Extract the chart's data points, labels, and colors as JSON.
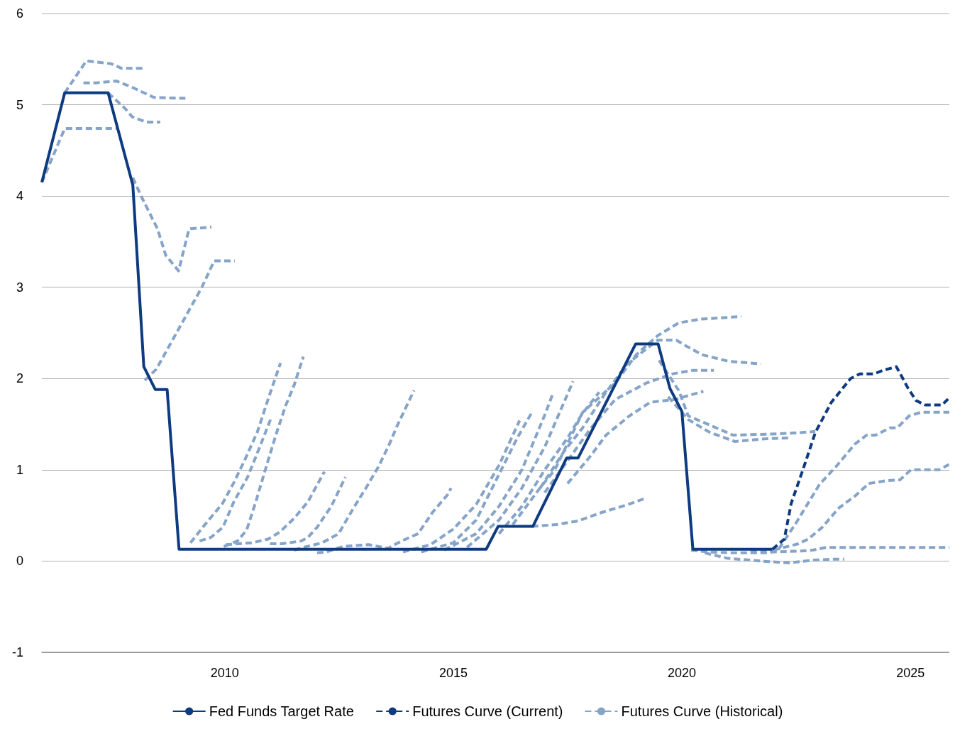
{
  "chart_data": {
    "type": "line",
    "xlim": [
      2006,
      2025.85
    ],
    "xticks": [
      2010,
      2015,
      2020,
      2025
    ],
    "ylim": [
      -1,
      6
    ],
    "yticks": [
      -1,
      0,
      1,
      2,
      3,
      4,
      5,
      6
    ],
    "grid": "y",
    "legend": "bottom",
    "series": [
      {
        "name": "Fed Funds Target Rate",
        "color": "#0e3b80",
        "line_style": "solid",
        "x": [
          2006.0,
          2006.5,
          2007.45,
          2007.99,
          2008.23,
          2008.48,
          2008.74,
          2009.0,
          2015.72,
          2015.98,
          2016.74,
          2017.48,
          2017.73,
          2018.99,
          2019.48,
          2019.74,
          2020.0,
          2020.24,
          2021.98
        ],
        "values": [
          4.15,
          5.13,
          5.13,
          4.12,
          2.13,
          1.88,
          1.88,
          0.13,
          0.13,
          0.38,
          0.38,
          1.13,
          1.13,
          2.38,
          2.38,
          1.89,
          1.64,
          0.13,
          0.13
        ]
      },
      {
        "name": "Futures Curve (Current)",
        "color": "#0e3b80",
        "line_style": "dashed",
        "x": [
          2021.98,
          2022.24,
          2022.39,
          2022.66,
          2022.92,
          2023.27,
          2023.69,
          2023.89,
          2024.2,
          2024.4,
          2024.69,
          2024.78,
          2024.94,
          2025.12,
          2025.32,
          2025.69,
          2025.83
        ],
        "values": [
          0.13,
          0.24,
          0.63,
          1.02,
          1.41,
          1.74,
          2.0,
          2.05,
          2.05,
          2.09,
          2.13,
          2.05,
          1.9,
          1.76,
          1.71,
          1.71,
          1.78
        ]
      },
      {
        "name": "Futures Curve (Historical)",
        "color": "#86a4c8",
        "line_style": "dashed",
        "x": [
          2006.0,
          2006.5,
          2007.63
        ],
        "values": [
          4.15,
          4.74,
          4.74
        ]
      },
      {
        "color": "#86a4c8",
        "line_style": "dashed",
        "x": [
          2006.5,
          2006.97,
          2007.51,
          2007.74,
          2008.22
        ],
        "values": [
          5.13,
          5.48,
          5.45,
          5.4,
          5.4
        ]
      },
      {
        "color": "#86a4c8",
        "line_style": "dashed",
        "x": [
          2006.91,
          2007.2,
          2007.63,
          2007.94,
          2008.45,
          2009.14
        ],
        "values": [
          5.24,
          5.24,
          5.26,
          5.2,
          5.08,
          5.07
        ]
      },
      {
        "color": "#86a4c8",
        "line_style": "dashed",
        "x": [
          2007.45,
          2007.82,
          2007.97,
          2008.28,
          2008.59
        ],
        "values": [
          5.13,
          4.96,
          4.87,
          4.81,
          4.81
        ]
      },
      {
        "color": "#86a4c8",
        "line_style": "dashed",
        "x": [
          2007.99,
          2008.17,
          2008.53,
          2008.71,
          2008.99,
          2009.22,
          2009.71
        ],
        "values": [
          4.2,
          4.0,
          3.64,
          3.35,
          3.18,
          3.64,
          3.66
        ]
      },
      {
        "color": "#86a4c8",
        "line_style": "dashed",
        "x": [
          2008.25,
          2008.5,
          2009.0,
          2009.5,
          2009.77,
          2010.22
        ],
        "values": [
          1.98,
          2.1,
          2.55,
          3.0,
          3.29,
          3.29
        ]
      },
      {
        "color": "#86a4c8",
        "line_style": "dashed",
        "x": [
          2009.25,
          2009.6,
          2009.95,
          2010.2,
          2010.45,
          2010.71,
          2011.0,
          2011.22
        ],
        "values": [
          0.2,
          0.42,
          0.63,
          0.86,
          1.12,
          1.41,
          1.85,
          2.17
        ]
      },
      {
        "color": "#86a4c8",
        "line_style": "dashed",
        "x": [
          2009.45,
          2009.7,
          2009.96,
          2010.2,
          2010.5,
          2010.75,
          2011.0
        ],
        "values": [
          0.22,
          0.26,
          0.37,
          0.65,
          0.92,
          1.23,
          1.55
        ]
      },
      {
        "color": "#86a4c8",
        "line_style": "dashed",
        "x": [
          2009.98,
          2010.28,
          2010.48,
          2010.68,
          2010.84,
          2010.99,
          2011.15,
          2011.33,
          2011.52,
          2011.72
        ],
        "values": [
          0.16,
          0.22,
          0.34,
          0.65,
          0.92,
          1.17,
          1.43,
          1.7,
          1.93,
          2.24
        ]
      },
      {
        "color": "#86a4c8",
        "line_style": "dashed",
        "x": [
          2010.02,
          2010.59,
          2010.95,
          2011.21,
          2011.52,
          2011.82,
          2012.18
        ],
        "values": [
          0.18,
          0.2,
          0.24,
          0.32,
          0.47,
          0.65,
          0.98
        ]
      },
      {
        "color": "#86a4c8",
        "line_style": "dashed",
        "x": [
          2010.99,
          2011.25,
          2011.67,
          2011.82,
          2012.02,
          2012.33,
          2012.64
        ],
        "values": [
          0.19,
          0.19,
          0.22,
          0.26,
          0.37,
          0.6,
          0.92
        ]
      },
      {
        "color": "#86a4c8",
        "line_style": "dashed",
        "x": [
          2011.52,
          2011.72,
          2012.13,
          2012.49,
          2012.84,
          2013.1,
          2013.37,
          2013.6,
          2013.77,
          2014.14
        ],
        "values": [
          0.12,
          0.15,
          0.2,
          0.3,
          0.6,
          0.81,
          1.04,
          1.28,
          1.48,
          1.87
        ]
      },
      {
        "color": "#86a4c8",
        "line_style": "dashed",
        "x": [
          2012.02,
          2012.22,
          2012.59,
          2013.15,
          2013.57,
          2013.87,
          2014.23,
          2014.54,
          2014.88,
          2014.95
        ],
        "values": [
          0.09,
          0.1,
          0.16,
          0.18,
          0.14,
          0.22,
          0.3,
          0.53,
          0.73,
          0.8
        ]
      },
      {
        "color": "#86a4c8",
        "line_style": "dashed",
        "x": [
          2013.9,
          2014.5,
          2015.0,
          2015.5,
          2016.0,
          2016.45
        ],
        "values": [
          0.1,
          0.18,
          0.35,
          0.62,
          1.05,
          1.54
        ]
      },
      {
        "color": "#86a4c8",
        "line_style": "dashed",
        "x": [
          2014.3,
          2015.0,
          2015.5,
          2016.0,
          2016.4,
          2016.72
        ],
        "values": [
          0.1,
          0.2,
          0.45,
          0.95,
          1.35,
          1.63
        ]
      },
      {
        "color": "#86a4c8",
        "line_style": "dashed",
        "x": [
          2014.8,
          2015.5,
          2016.0,
          2016.5,
          2017.0,
          2017.19
        ],
        "values": [
          0.12,
          0.3,
          0.6,
          1.0,
          1.6,
          1.85
        ]
      },
      {
        "color": "#86a4c8",
        "line_style": "dashed",
        "x": [
          2015.3,
          2016.0,
          2016.5,
          2017.0,
          2017.62
        ],
        "values": [
          0.15,
          0.45,
          0.8,
          1.25,
          1.97
        ]
      },
      {
        "color": "#86a4c8",
        "line_style": "dashed",
        "x": [
          2016.0,
          2016.5,
          2017.0,
          2017.5,
          2017.8,
          2018.19
        ],
        "values": [
          0.3,
          0.6,
          1.0,
          1.35,
          1.6,
          1.85
        ]
      },
      {
        "color": "#86a4c8",
        "line_style": "dashed",
        "x": [
          2016.3,
          2016.91,
          2017.22,
          2017.83,
          2018.54,
          2019.0,
          2019.47,
          2019.93,
          2020.39,
          2021.3
        ],
        "values": [
          0.4,
          0.81,
          1.0,
          1.63,
          1.95,
          2.26,
          2.47,
          2.61,
          2.65,
          2.68
        ]
      },
      {
        "color": "#86a4c8",
        "line_style": "dashed",
        "x": [
          2016.9,
          2017.42,
          2017.83,
          2018.3,
          2018.8,
          2019.47,
          2019.88,
          2020.08,
          2020.45,
          2021.01,
          2021.73
        ],
        "values": [
          0.8,
          1.2,
          1.46,
          1.82,
          2.16,
          2.42,
          2.42,
          2.36,
          2.26,
          2.19,
          2.16
        ]
      },
      {
        "color": "#86a4c8",
        "line_style": "dashed",
        "x": [
          2017.0,
          2017.5,
          2018.0,
          2018.54,
          2019.22,
          2019.78,
          2020.24,
          2020.7
        ],
        "values": [
          0.75,
          1.1,
          1.45,
          1.77,
          1.95,
          2.05,
          2.09,
          2.09
        ]
      },
      {
        "color": "#86a4c8",
        "line_style": "dashed",
        "x": [
          2017.5,
          2018.0,
          2018.34,
          2018.85,
          2019.31,
          2019.84,
          2020.47
        ],
        "values": [
          0.85,
          1.15,
          1.38,
          1.59,
          1.74,
          1.77,
          1.86
        ]
      },
      {
        "color": "#86a4c8",
        "line_style": "dashed",
        "x": [
          2016.72,
          2017.26,
          2017.73,
          2018.23,
          2018.76,
          2019.22
        ],
        "values": [
          0.38,
          0.4,
          0.44,
          0.53,
          0.61,
          0.69
        ]
      },
      {
        "color": "#86a4c8",
        "line_style": "dashed",
        "x": [
          2019.5,
          2019.93,
          2020.14,
          2020.61,
          2021.12,
          2021.84,
          2022.35,
          2022.92
        ],
        "values": [
          2.2,
          1.87,
          1.59,
          1.49,
          1.38,
          1.39,
          1.4,
          1.42
        ]
      },
      {
        "color": "#86a4c8",
        "line_style": "dashed",
        "x": [
          2019.7,
          2020.14,
          2020.61,
          2021.16,
          2021.81,
          2022.35
        ],
        "values": [
          1.8,
          1.55,
          1.41,
          1.31,
          1.34,
          1.35
        ]
      },
      {
        "color": "#86a4c8",
        "line_style": "dashed",
        "x": [
          2020.2,
          2020.6,
          2021.1,
          2021.81,
          2022.09,
          2022.5,
          2023.01,
          2023.38,
          2023.78,
          2024.04,
          2024.24,
          2024.55,
          2024.71,
          2024.97,
          2025.23,
          2025.69,
          2025.85
        ],
        "values": [
          0.12,
          0.1,
          0.09,
          0.09,
          0.11,
          0.42,
          0.84,
          1.04,
          1.28,
          1.38,
          1.38,
          1.46,
          1.46,
          1.59,
          1.63,
          1.63,
          1.63
        ]
      },
      {
        "color": "#86a4c8",
        "line_style": "dashed",
        "x": [
          2022.0,
          2022.55,
          2022.76,
          2023.07,
          2023.43,
          2023.78,
          2024.09,
          2024.46,
          2024.77,
          2025.01,
          2025.63,
          2025.85
        ],
        "values": [
          0.12,
          0.19,
          0.24,
          0.37,
          0.58,
          0.71,
          0.85,
          0.88,
          0.89,
          1.0,
          1.0,
          1.06
        ]
      },
      {
        "color": "#86a4c8",
        "line_style": "dashed",
        "x": [
          2021.5,
          2022.0,
          2022.61,
          2022.86,
          2023.16,
          2023.6,
          2024.5,
          2025.85
        ],
        "values": [
          0.11,
          0.1,
          0.11,
          0.12,
          0.15,
          0.15,
          0.15,
          0.15
        ]
      },
      {
        "color": "#86a4c8",
        "line_style": "dashed",
        "x": [
          2020.5,
          2021.0,
          2021.51,
          2021.73,
          2022.35,
          2022.86,
          2023.27,
          2023.55
        ],
        "values": [
          0.09,
          0.03,
          0.01,
          0.0,
          -0.02,
          0.01,
          0.02,
          0.02
        ]
      }
    ]
  }
}
